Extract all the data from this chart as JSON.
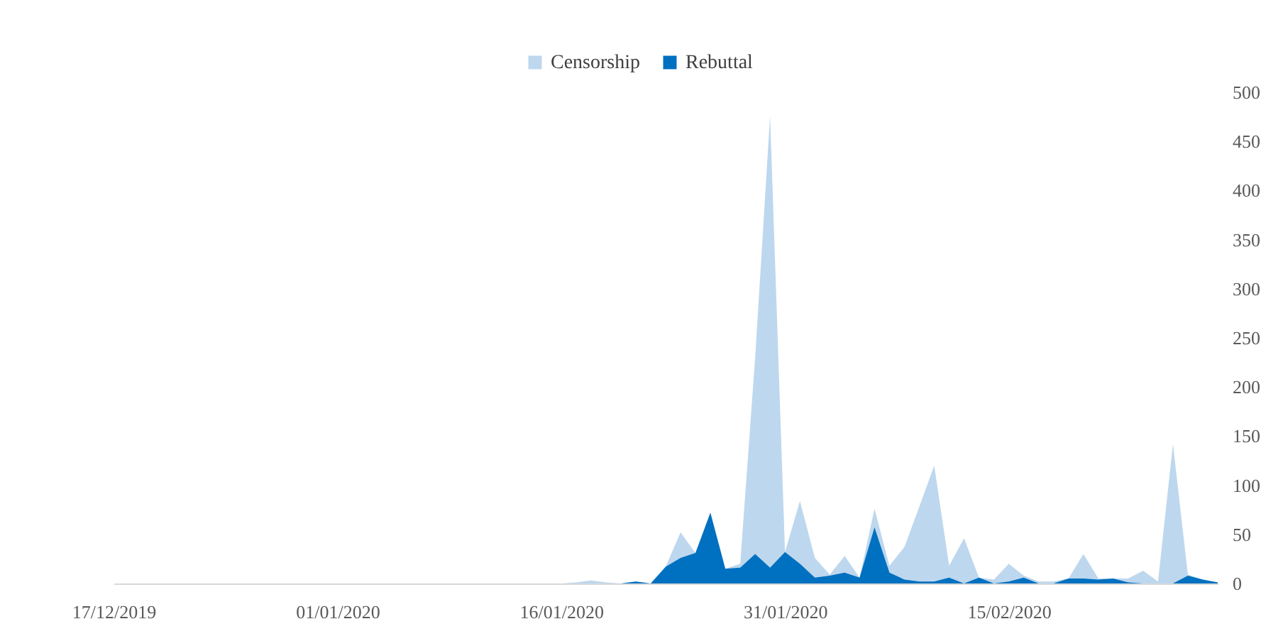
{
  "chart_data": {
    "type": "area",
    "x": [
      "2019-12-17",
      "2019-12-18",
      "2019-12-19",
      "2019-12-20",
      "2019-12-21",
      "2019-12-22",
      "2019-12-23",
      "2019-12-24",
      "2019-12-25",
      "2019-12-26",
      "2019-12-27",
      "2019-12-28",
      "2019-12-29",
      "2019-12-30",
      "2019-12-31",
      "2020-01-01",
      "2020-01-02",
      "2020-01-03",
      "2020-01-04",
      "2020-01-05",
      "2020-01-06",
      "2020-01-07",
      "2020-01-08",
      "2020-01-09",
      "2020-01-10",
      "2020-01-11",
      "2020-01-12",
      "2020-01-13",
      "2020-01-14",
      "2020-01-15",
      "2020-01-16",
      "2020-01-17",
      "2020-01-18",
      "2020-01-19",
      "2020-01-20",
      "2020-01-21",
      "2020-01-22",
      "2020-01-23",
      "2020-01-24",
      "2020-01-25",
      "2020-01-26",
      "2020-01-27",
      "2020-01-28",
      "2020-01-29",
      "2020-01-30",
      "2020-01-31",
      "2020-02-01",
      "2020-02-02",
      "2020-02-03",
      "2020-02-04",
      "2020-02-05",
      "2020-02-06",
      "2020-02-07",
      "2020-02-08",
      "2020-02-09",
      "2020-02-10",
      "2020-02-11",
      "2020-02-12",
      "2020-02-13",
      "2020-02-14",
      "2020-02-15",
      "2020-02-16",
      "2020-02-17",
      "2020-02-18",
      "2020-02-19",
      "2020-02-20",
      "2020-02-21",
      "2020-02-22",
      "2020-02-23",
      "2020-02-24",
      "2020-02-25",
      "2020-02-26",
      "2020-02-27",
      "2020-02-28",
      "2020-02-29"
    ],
    "series": [
      {
        "name": "Censorship",
        "color": "#bdd7ee",
        "values": [
          0,
          0,
          0,
          0,
          0,
          0,
          0,
          0,
          0,
          0,
          0,
          0,
          0,
          0,
          0,
          0,
          0,
          0,
          0,
          0,
          0,
          0,
          0,
          0,
          0,
          0,
          0,
          0,
          0,
          0,
          0,
          1,
          3,
          1,
          0,
          2,
          0,
          17,
          52,
          31,
          72,
          15,
          20,
          230,
          476,
          32,
          84,
          26,
          9,
          28,
          6,
          76,
          18,
          37,
          78,
          120,
          18,
          46,
          6,
          4,
          20,
          8,
          2,
          2,
          5,
          30,
          5,
          5,
          5,
          13,
          2,
          142,
          9,
          4,
          1
        ]
      },
      {
        "name": "Rebuttal",
        "color": "#0070c0",
        "values": [
          0,
          0,
          0,
          0,
          0,
          0,
          0,
          0,
          0,
          0,
          0,
          0,
          0,
          0,
          0,
          0,
          0,
          0,
          0,
          0,
          0,
          0,
          0,
          0,
          0,
          0,
          0,
          0,
          0,
          0,
          0,
          0,
          0,
          0,
          0,
          2,
          0,
          17,
          26,
          31,
          72,
          15,
          16,
          30,
          16,
          32,
          20,
          6,
          8,
          11,
          6,
          57,
          11,
          4,
          2,
          2,
          6,
          0,
          6,
          0,
          2,
          6,
          0,
          0,
          5,
          5,
          4,
          5,
          1,
          0,
          0,
          0,
          8,
          4,
          1
        ]
      }
    ],
    "xlim": [
      "2019-12-17",
      "2020-02-29"
    ],
    "xticks": [
      {
        "value": "2019-12-17",
        "label": "17/12/2019"
      },
      {
        "value": "2020-01-01",
        "label": "01/01/2020"
      },
      {
        "value": "2020-01-16",
        "label": "16/01/2020"
      },
      {
        "value": "2020-01-31",
        "label": "31/01/2020"
      },
      {
        "value": "2020-02-15",
        "label": "15/02/2020"
      }
    ],
    "ylim": [
      0,
      500
    ],
    "yticks": [
      0,
      50,
      100,
      150,
      200,
      250,
      300,
      350,
      400,
      450,
      500
    ],
    "legend": "top",
    "grid": false
  }
}
